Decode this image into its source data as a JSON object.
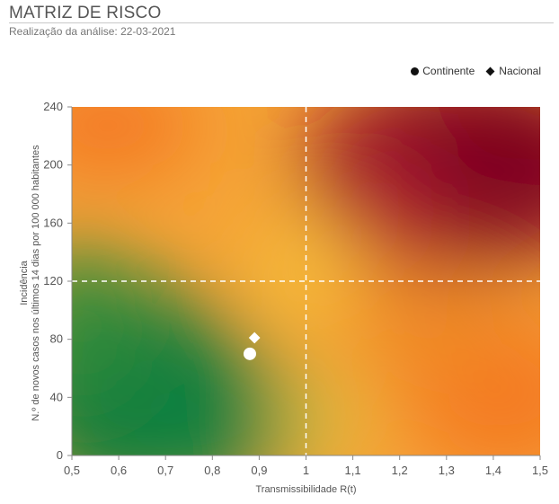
{
  "header": {
    "title": "MATRIZ DE RISCO",
    "subtitle": "Realização da análise: 22-03-2021"
  },
  "legend": {
    "items": [
      {
        "label": "Continente",
        "marker": "circle-icon"
      },
      {
        "label": "Nacional",
        "marker": "diamond-icon"
      }
    ]
  },
  "chart_data": {
    "type": "scatter",
    "title": "MATRIZ DE RISCO",
    "xlabel": "Transmissibilidade R(t)",
    "ylabel_line1": "Incidência",
    "ylabel_line2": "N.º de novos casos nos últimos 14 dias por 100 000 habitantes",
    "xlim": [
      0.5,
      1.5
    ],
    "ylim": [
      0,
      240
    ],
    "x_ticks": [
      "0,5",
      "0,6",
      "0,7",
      "0,8",
      "0,9",
      "1",
      "1,1",
      "1,2",
      "1,3",
      "1,4",
      "1,5"
    ],
    "y_ticks": [
      "0",
      "40",
      "80",
      "120",
      "160",
      "200",
      "240"
    ],
    "thresholds": {
      "x": 1,
      "y": 120
    },
    "series": [
      {
        "name": "Continente",
        "marker": "circle",
        "x": 0.88,
        "y": 70
      },
      {
        "name": "Nacional",
        "marker": "diamond",
        "x": 0.89,
        "y": 81
      }
    ],
    "legend_position": "top-right",
    "colors": {
      "low": "#0a7a3a",
      "mid": "#f5b83a",
      "orange": "#f47a22",
      "high": "#7d0020",
      "threshold_line": "#ffffff"
    }
  }
}
